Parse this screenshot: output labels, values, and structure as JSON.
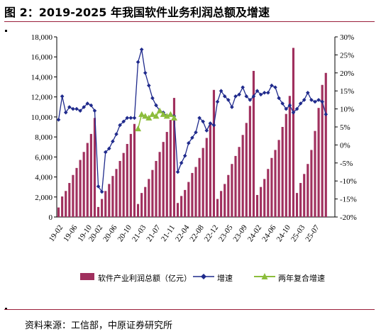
{
  "figure": {
    "title": "图 2：2019-2025 年我国软件业务利润总额及增速",
    "source": "资料来源：工信部，中原证券研究所"
  },
  "colors": {
    "bar": "#a0305e",
    "growth_line": "#1f2a8c",
    "two_year_line": "#8cbd3c",
    "accent_rule": "#9a1f3a"
  },
  "chart_data": {
    "type": "bar",
    "x_tick_labels": [
      "19-02",
      "19-06",
      "19-10",
      "20-02",
      "20-06",
      "20-10",
      "21-03",
      "21-07",
      "21-11",
      "22-04",
      "22-08",
      "22-12",
      "23-05",
      "23-09",
      "24-02",
      "24-06",
      "24-10",
      "25-03",
      "25-07"
    ],
    "ylim_left": [
      0,
      18000
    ],
    "ylim_right": [
      -20,
      30
    ],
    "yticks_left": [
      "0",
      "2,000",
      "4,000",
      "6,000",
      "8,000",
      "10,000",
      "12,000",
      "14,000",
      "16,000",
      "18,000"
    ],
    "yticks_right": [
      "-20%",
      "-15%",
      "-10%",
      "-5%",
      "0%",
      "5%",
      "10%",
      "15%",
      "20%",
      "25%",
      "30%"
    ],
    "legend_position": "bottom",
    "grid": false,
    "years": [
      {
        "year": "2019",
        "months": [
          "02",
          "03",
          "04",
          "05",
          "06",
          "07",
          "08",
          "09",
          "10",
          "11",
          "12"
        ],
        "profit": [
          950,
          2050,
          2600,
          3400,
          4200,
          4900,
          5700,
          6500,
          7400,
          8300,
          9900
        ],
        "growth": [
          7.0,
          13.5,
          9.0,
          10.5,
          10.0,
          10.0,
          9.5,
          10.5,
          11.5,
          11.0,
          9.5
        ],
        "two_year": [
          null,
          null,
          null,
          null,
          null,
          null,
          null,
          null,
          null,
          null,
          null
        ]
      },
      {
        "year": "2020",
        "months": [
          "02",
          "03",
          "04",
          "05",
          "06",
          "07",
          "08",
          "09",
          "10",
          "11",
          "12"
        ],
        "profit": [
          1000,
          1800,
          2600,
          3300,
          4100,
          4800,
          5600,
          6400,
          7300,
          8300,
          9300
        ],
        "growth": [
          -11.5,
          -13.0,
          -2.0,
          -1.0,
          1.0,
          3.0,
          5.5,
          6.5,
          7.5,
          7.5,
          7.5
        ],
        "two_year": [
          null,
          null,
          null,
          null,
          null,
          null,
          null,
          null,
          null,
          null,
          null
        ]
      },
      {
        "year": "2021",
        "months": [
          "02",
          "03",
          "04",
          "05",
          "06",
          "07",
          "08",
          "09",
          "10",
          "11",
          "12"
        ],
        "profit": [
          1300,
          2400,
          3000,
          3800,
          4700,
          5600,
          6500,
          7500,
          8500,
          9700,
          11900
        ],
        "growth": [
          23.0,
          26.5,
          20.0,
          16.5,
          13.0,
          11.0,
          9.5,
          9.0,
          8.0,
          8.5,
          8.0
        ],
        "two_year": [
          4.5,
          8.5,
          8.0,
          7.5,
          8.5,
          8.0,
          9.5,
          8.5,
          8.0,
          8.5,
          7.5
        ]
      },
      {
        "year": "2022",
        "months": [
          "02",
          "03",
          "04",
          "05",
          "06",
          "07",
          "08",
          "09",
          "10",
          "11",
          "12"
        ],
        "profit": [
          1400,
          2100,
          2700,
          3500,
          4400,
          5000,
          5900,
          6900,
          7900,
          9400,
          12700
        ],
        "growth": [
          -7.5,
          -5.0,
          -3.0,
          0.5,
          2.0,
          3.5,
          7.5,
          6.5,
          4.0,
          6.0,
          5.5
        ],
        "two_year": [
          null,
          null,
          null,
          null,
          null,
          null,
          null,
          null,
          null,
          null,
          null
        ]
      },
      {
        "year": "2023",
        "months": [
          "02",
          "03",
          "04",
          "05",
          "06",
          "07",
          "08",
          "09",
          "10",
          "11",
          "12"
        ],
        "profit": [
          1800,
          2600,
          3300,
          4200,
          5300,
          6100,
          7000,
          8200,
          9400,
          11100,
          14600
        ],
        "growth": [
          12.0,
          15.0,
          13.5,
          12.5,
          10.5,
          13.5,
          14.0,
          16.0,
          13.5,
          12.5,
          13.5
        ],
        "two_year": [
          null,
          null,
          null,
          null,
          null,
          null,
          null,
          null,
          null,
          null,
          null
        ]
      },
      {
        "year": "2024",
        "months": [
          "02",
          "03",
          "04",
          "05",
          "06",
          "07",
          "08",
          "09",
          "10",
          "11",
          "12"
        ],
        "profit": [
          2200,
          3000,
          3800,
          4800,
          5900,
          6700,
          7700,
          9000,
          10300,
          12100,
          16900
        ],
        "growth": [
          15.0,
          14.0,
          14.5,
          14.5,
          16.5,
          16.0,
          13.0,
          11.5,
          10.0,
          11.0,
          9.0
        ],
        "two_year": [
          null,
          null,
          null,
          null,
          null,
          null,
          null,
          null,
          null,
          null,
          null
        ]
      },
      {
        "year": "2025",
        "months": [
          "02",
          "03",
          "04",
          "05",
          "06",
          "07",
          "08",
          "09",
          "10",
          "11",
          "12"
        ],
        "profit": [
          2400,
          3400,
          4300,
          5300,
          6700,
          8600,
          10900,
          13200,
          14400,
          null,
          null
        ],
        "growth": [
          10.0,
          11.5,
          12.5,
          14.5,
          12.5,
          12.0,
          12.5,
          12.0,
          8.5,
          null,
          null
        ],
        "two_year": [
          null,
          null,
          null,
          null,
          null,
          null,
          null,
          null,
          null,
          null,
          null
        ]
      }
    ]
  },
  "legend": {
    "bar_label": "软件产业利润总额（亿元）",
    "growth_label": "增速",
    "two_year_label": "两年复合增速"
  }
}
